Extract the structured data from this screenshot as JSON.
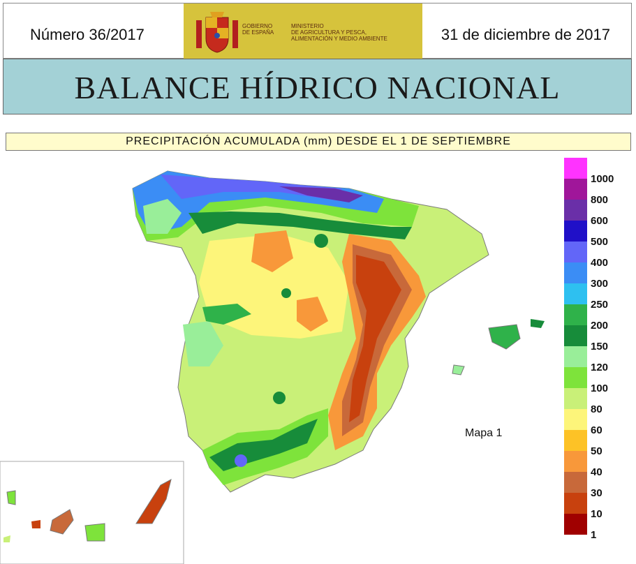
{
  "header": {
    "issue": "Número 36/2017",
    "date": "31 de diciembre de 2017",
    "logo_left": "GOBIERNO\nDE ESPAÑA",
    "logo_right": "MINISTERIO\nDE AGRICULTURA Y PESCA,\nALIMENTACIÓN Y MEDIO AMBIENTE"
  },
  "title": "BALANCE HÍDRICO NACIONAL",
  "subtitle": "PRECIPITACIÓN ACUMULADA (mm) DESDE EL 1 DE SEPTIEMBRE",
  "map_label": "Mapa 1",
  "legend": {
    "items": [
      {
        "label": "1000",
        "color": "#ff33ff"
      },
      {
        "label": "800",
        "color": "#a0169a"
      },
      {
        "label": "600",
        "color": "#6a2fa8"
      },
      {
        "label": "500",
        "color": "#2010c8"
      },
      {
        "label": "400",
        "color": "#6266f8"
      },
      {
        "label": "300",
        "color": "#3b8df5"
      },
      {
        "label": "250",
        "color": "#2ec0f0"
      },
      {
        "label": "200",
        "color": "#2fb24a"
      },
      {
        "label": "150",
        "color": "#178c3a"
      },
      {
        "label": "120",
        "color": "#99ee99"
      },
      {
        "label": "100",
        "color": "#7ee33b"
      },
      {
        "label": "80",
        "color": "#c9f078"
      },
      {
        "label": "60",
        "color": "#fdf57a"
      },
      {
        "label": "50",
        "color": "#fdc226"
      },
      {
        "label": "40",
        "color": "#f8983a"
      },
      {
        "label": "30",
        "color": "#c8693a"
      },
      {
        "label": "10",
        "color": "#c8410e"
      },
      {
        "label": "1",
        "color": "#a00000"
      }
    ]
  }
}
